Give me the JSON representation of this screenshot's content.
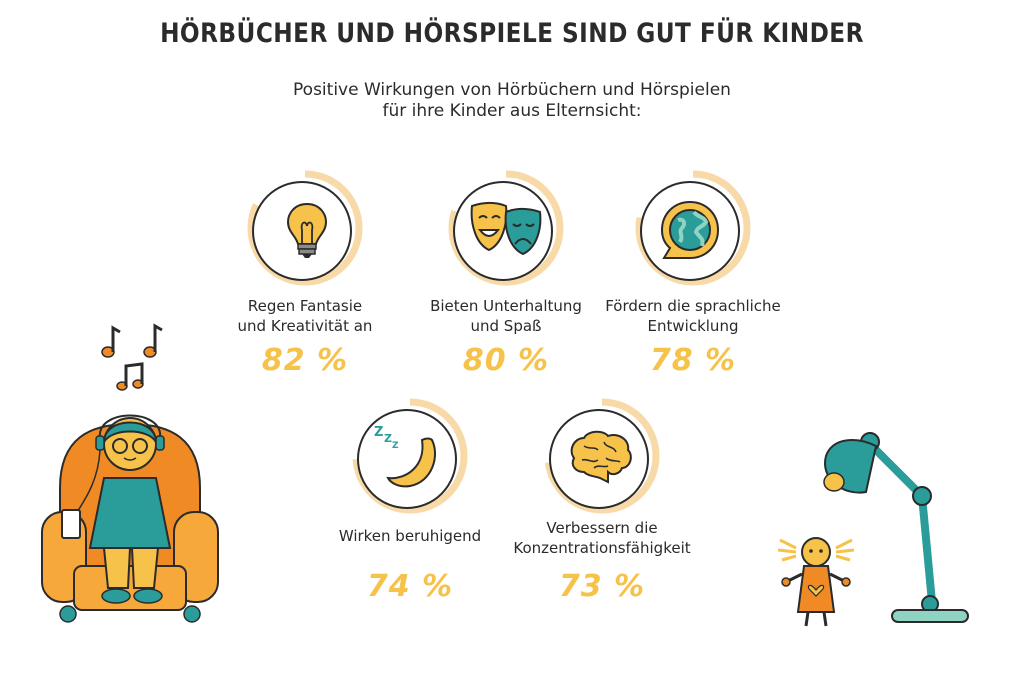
{
  "title": "HÖRBÜCHER UND HÖRSPIELE SIND GUT FÜR KINDER",
  "subtitle": {
    "line1": "Positive Wirkungen von Hörbüchern und Hörspielen",
    "line2": "für ihre Kinder aus Elternsicht:"
  },
  "items": [
    {
      "icon": "lightbulb-icon",
      "label_line1": "Regen Fantasie",
      "label_line2": "und Kreativität an",
      "percent": "82 %",
      "value": 82
    },
    {
      "icon": "theater-masks-icon",
      "label_line1": "Bieten Unterhaltung",
      "label_line2": "und Spaß",
      "percent": "80 %",
      "value": 80
    },
    {
      "icon": "globe-speech-icon",
      "label_line1": "Fördern die sprachliche",
      "label_line2": "Entwicklung",
      "percent": "78 %",
      "value": 78
    },
    {
      "icon": "moon-sleep-icon",
      "label_line1": "Wirken beruhigend",
      "label_line2": "",
      "percent": "74 %",
      "value": 74
    },
    {
      "icon": "brain-icon",
      "label_line1": "Verbessern die",
      "label_line2": "Konzentrationsfähigkeit",
      "percent": "73 %",
      "value": 73
    }
  ],
  "colors": {
    "ring": "#f8d9a8",
    "accent": "#f6c24a",
    "teal": "#2a9d9a",
    "orange": "#f08a24",
    "text": "#2b2b2b"
  },
  "sleep_letters": "ZZZ"
}
